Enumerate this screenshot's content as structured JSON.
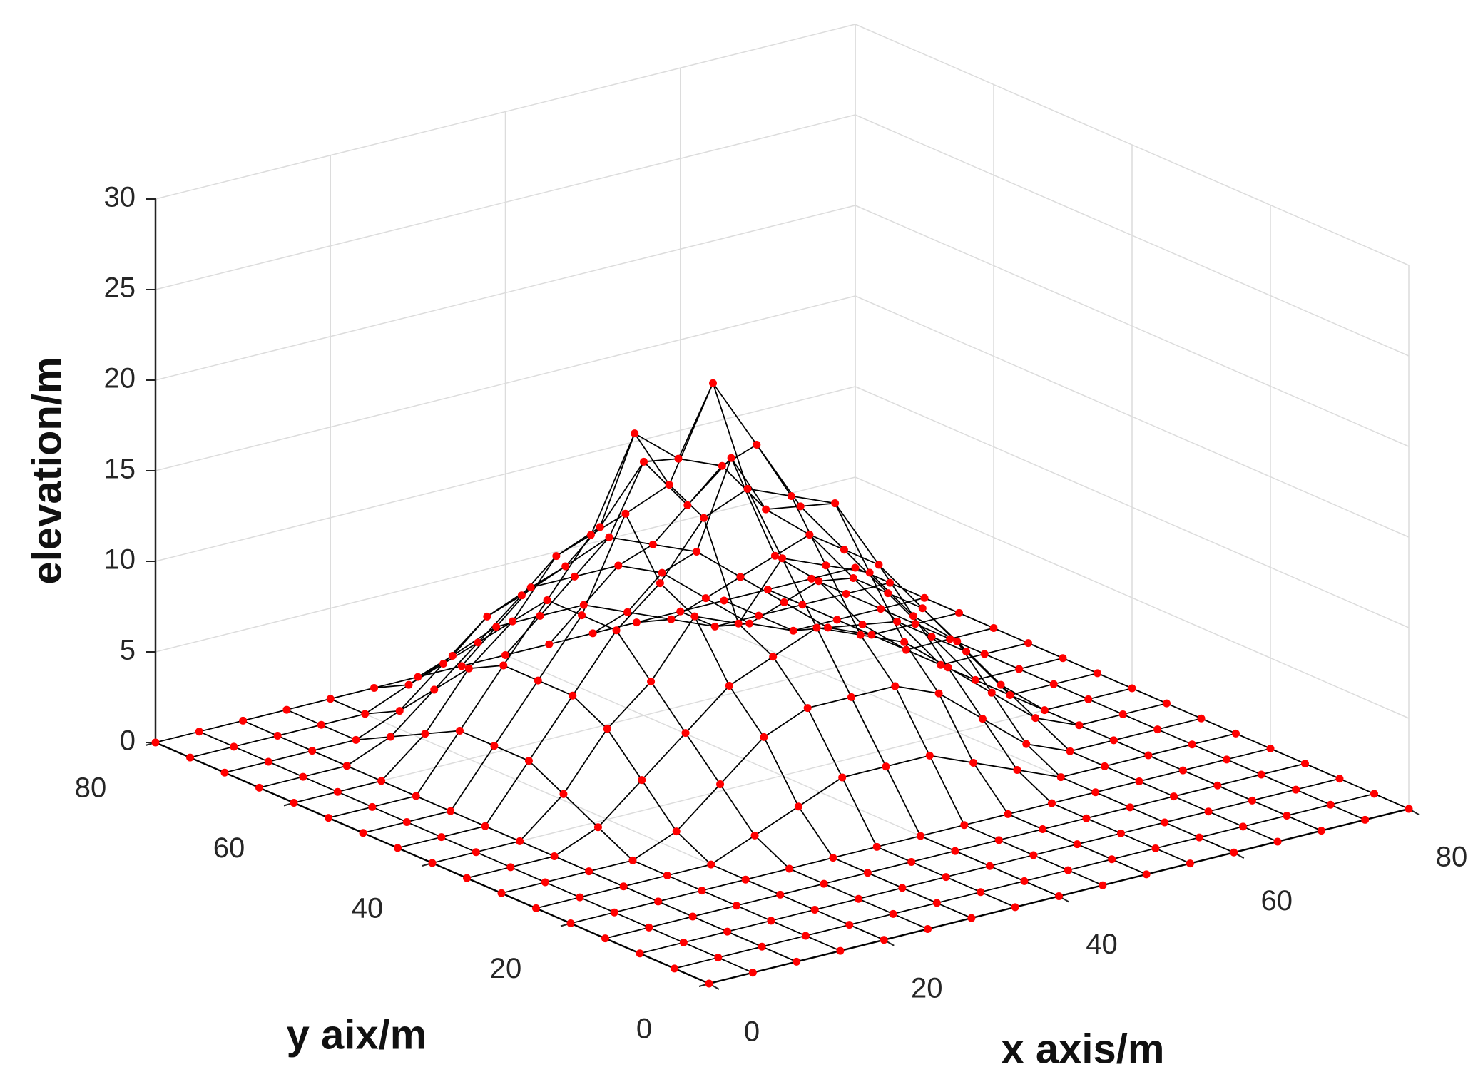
{
  "chart_data": {
    "type": "surface",
    "xlabel": "x axis/m",
    "ylabel": "y aix/m",
    "zlabel": "elevation/m",
    "x": [
      0,
      5,
      10,
      15,
      20,
      25,
      30,
      35,
      40,
      45,
      50,
      55,
      60,
      65,
      70,
      75,
      80
    ],
    "y": [
      0,
      5,
      10,
      15,
      20,
      25,
      30,
      35,
      40,
      45,
      50,
      55,
      60,
      65,
      70,
      75,
      80
    ],
    "z": [
      [
        0,
        0,
        0,
        0,
        0,
        0,
        0,
        0,
        0,
        0,
        0,
        0,
        0,
        0,
        0,
        0,
        0
      ],
      [
        0,
        0,
        0,
        0,
        0,
        0,
        0,
        0,
        0,
        0,
        0,
        0,
        0,
        0,
        0,
        0,
        0
      ],
      [
        0,
        0,
        0,
        0,
        0,
        0,
        0,
        0,
        0,
        0,
        0,
        0,
        0,
        0,
        0,
        0,
        0
      ],
      [
        0,
        0,
        0,
        0,
        0,
        0,
        0,
        0,
        0,
        0,
        0,
        0,
        0,
        0,
        0,
        0,
        0
      ],
      [
        0,
        0,
        0,
        0,
        0,
        0,
        0,
        0,
        0,
        0,
        0,
        0,
        0,
        0,
        0,
        0,
        0
      ],
      [
        0,
        0,
        0,
        0,
        0,
        1,
        2,
        3,
        3,
        3,
        2,
        1,
        0,
        0,
        0,
        0,
        0
      ],
      [
        0,
        0,
        0,
        0,
        1,
        3,
        5,
        6,
        6,
        6,
        5,
        3,
        1,
        0,
        0,
        0,
        0
      ],
      [
        0,
        0,
        0,
        1,
        3,
        5,
        7,
        8,
        9,
        8,
        7,
        5,
        3,
        1,
        0,
        0,
        0
      ],
      [
        0,
        0,
        0,
        2,
        5,
        7,
        10,
        9,
        12,
        11,
        10,
        7,
        5,
        2,
        0,
        0,
        0
      ],
      [
        0,
        0,
        0,
        3,
        6,
        9,
        11,
        14,
        15,
        14,
        13,
        9,
        6,
        3,
        0,
        0,
        0
      ],
      [
        0,
        0,
        0,
        3,
        6,
        9,
        14,
        15,
        20,
        16,
        12,
        9,
        6,
        3,
        0,
        0,
        0
      ],
      [
        0,
        0,
        0,
        3,
        6,
        9,
        12,
        17,
        15,
        14,
        11,
        9,
        6,
        3,
        0,
        0,
        0
      ],
      [
        0,
        0,
        0,
        2,
        5,
        7,
        10,
        11,
        14,
        11,
        13,
        7,
        5,
        2,
        0,
        0,
        0
      ],
      [
        0,
        0,
        0,
        1,
        3,
        5,
        7,
        8,
        9,
        8,
        7,
        5,
        3,
        1,
        0,
        0,
        0
      ],
      [
        0,
        0,
        0,
        0,
        1,
        3,
        5,
        6,
        6,
        6,
        5,
        3,
        1,
        0,
        0,
        0,
        0
      ],
      [
        0,
        0,
        0,
        0,
        0,
        1,
        2,
        3,
        3,
        3,
        2,
        1,
        0,
        0,
        0,
        0,
        0
      ],
      [
        0,
        0,
        0,
        0,
        0,
        0,
        0,
        0,
        0,
        0,
        0,
        0,
        0,
        0,
        0,
        0,
        0
      ]
    ],
    "xlim": [
      0,
      80
    ],
    "ylim": [
      0,
      80
    ],
    "zlim": [
      0,
      30
    ],
    "xticks": [
      0,
      20,
      40,
      60,
      80
    ],
    "yticks": [
      0,
      20,
      40,
      60,
      80
    ],
    "zticks": [
      0,
      5,
      10,
      15,
      20,
      25,
      30
    ],
    "grid": true,
    "line_color": "#000000",
    "marker_color": "#ff0000"
  }
}
